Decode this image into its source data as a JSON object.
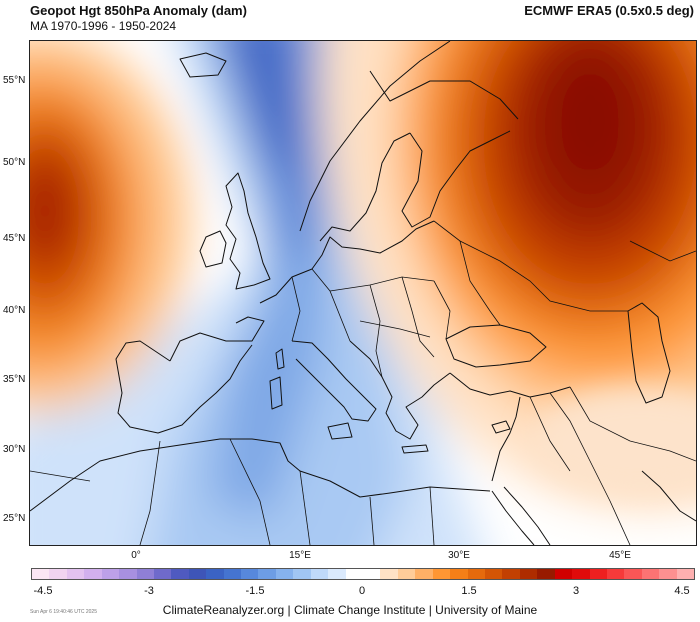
{
  "header": {
    "title": "Geopot Hgt 850hPa Anomaly (dam)",
    "subtitle": "MA 1970-1996 - 1950-2024",
    "source": "ECMWF ERA5 (0.5x0.5 deg)"
  },
  "axes": {
    "lat_labels": [
      "55°N",
      "50°N",
      "45°N",
      "40°N",
      "35°N",
      "30°N",
      "25°N"
    ],
    "lon_labels": [
      "0°",
      "15°E",
      "30°E",
      "45°E"
    ]
  },
  "colorbar": {
    "labels": [
      "-4.5",
      "-3",
      "-1.5",
      "0",
      "1.5",
      "3",
      "4.5"
    ],
    "colors": [
      "#fbe6f4",
      "#f1d4f1",
      "#e3c2f0",
      "#d2b0ee",
      "#bda0e8",
      "#a890e0",
      "#8f7fd6",
      "#6f6acb",
      "#4f5ac0",
      "#3e55b8",
      "#3b63c4",
      "#4574d0",
      "#5788dc",
      "#6d9de5",
      "#86b2ee",
      "#a1c6f4",
      "#bfd9fa",
      "#dbeafd",
      "#ffffff",
      "#ffffff",
      "#ffe2c6",
      "#ffcc99",
      "#ffb066",
      "#ff9633",
      "#f57f17",
      "#e56a0c",
      "#d45505",
      "#c24002",
      "#ae2c00",
      "#981a00",
      "#d10000",
      "#e00b0b",
      "#ee2020",
      "#f63a3a",
      "#fa5656",
      "#fc7373",
      "#fd9090",
      "#feb0b0"
    ]
  },
  "footer": {
    "timestamp": "Sun Apr 6 19:40:46 UTC 2025",
    "credits": "ClimateReanalyzer.org | Climate Change Institute | University of Maine"
  }
}
